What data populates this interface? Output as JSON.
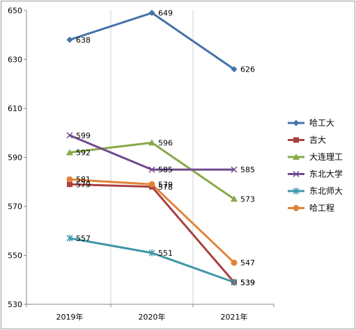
{
  "chart_data": {
    "type": "line",
    "categories": [
      "2019年",
      "2020年",
      "2021年"
    ],
    "ylim": [
      530,
      650
    ],
    "yticks": [
      530,
      550,
      570,
      590,
      610,
      630,
      650
    ],
    "grid": "vertical",
    "legend": "right",
    "series": [
      {
        "name": "哈工大",
        "values": [
          638,
          649,
          626
        ],
        "color": "#4472a8",
        "marker": "diamond"
      },
      {
        "name": "吉大",
        "values": [
          579,
          578,
          539
        ],
        "color": "#a84040",
        "marker": "square"
      },
      {
        "name": "大连理工",
        "values": [
          592,
          596,
          573
        ],
        "color": "#88a84a",
        "marker": "triangle"
      },
      {
        "name": "东北大学",
        "values": [
          599,
          585,
          585
        ],
        "color": "#6f4a8e",
        "marker": "x"
      },
      {
        "name": "东北师大",
        "values": [
          557,
          551,
          539
        ],
        "color": "#3d97a8",
        "marker": "star"
      },
      {
        "name": "哈工程",
        "values": [
          581,
          579,
          547
        ],
        "color": "#e0843a",
        "marker": "circle"
      }
    ]
  }
}
